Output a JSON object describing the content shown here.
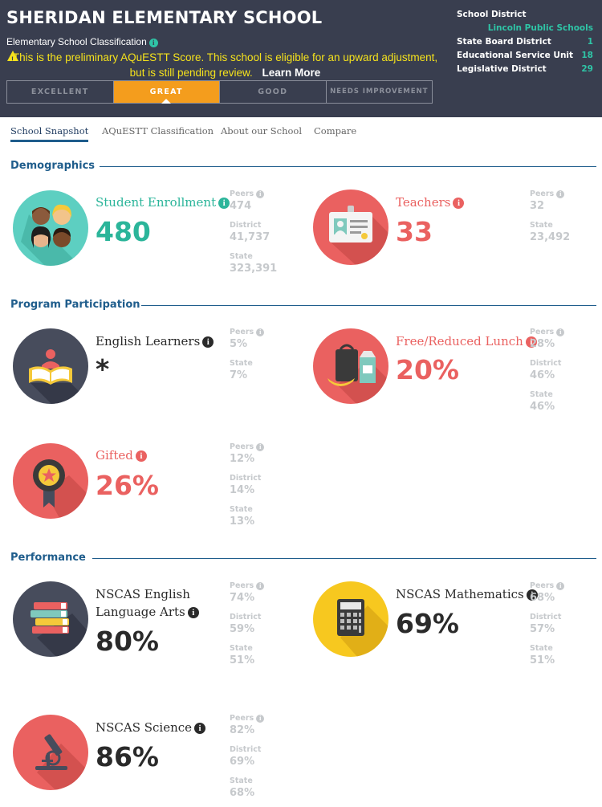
{
  "header": {
    "school_name": "SHERIDAN ELEMENTARY SCHOOL",
    "classification_label": "Elementary School Classification",
    "warning_text": "This is the preliminary AQuESTT Score. This school is eligible for an upward adjustment, but is still pending review.",
    "learn_more": "Learn More",
    "tiers": [
      "EXCELLENT",
      "GREAT",
      "GOOD",
      "NEEDS IMPROVEMENT"
    ],
    "active_tier": "GREAT",
    "district_panel": {
      "school_district_label": "School District",
      "school_district_value": "Lincoln Public Schools",
      "state_board_label": "State Board District",
      "state_board_value": "1",
      "esu_label": "Educational Service Unit",
      "esu_value": "18",
      "legislative_label": "Legislative District",
      "legislative_value": "29"
    }
  },
  "tabs": [
    "School Snapshot",
    "AQuESTT Classification",
    "About our School",
    "Compare"
  ],
  "active_tab": "School Snapshot",
  "sections": {
    "demographics": "Demographics",
    "program": "Program Participation",
    "performance": "Performance"
  },
  "compare_labels": {
    "peers": "Peers",
    "district": "District",
    "state": "State"
  },
  "stats": {
    "enrollment": {
      "label": "Student Enrollment",
      "value": "480",
      "peers": "474",
      "district": "41,737",
      "state": "323,391"
    },
    "teachers": {
      "label": "Teachers",
      "value": "33",
      "peers": "32",
      "state": "23,492"
    },
    "ell": {
      "label": "English Learners",
      "value": "*",
      "peers": "5%",
      "state": "7%"
    },
    "frl": {
      "label": "Free/Reduced Lunch",
      "value": "20%",
      "peers": "28%",
      "district": "46%",
      "state": "46%"
    },
    "gifted": {
      "label": "Gifted",
      "value": "26%",
      "peers": "12%",
      "district": "14%",
      "state": "13%"
    },
    "ela": {
      "label": "NSCAS English Language Arts",
      "value": "80%",
      "peers": "74%",
      "district": "59%",
      "state": "51%"
    },
    "math": {
      "label": "NSCAS Mathematics",
      "value": "69%",
      "peers": "68%",
      "district": "57%",
      "state": "51%"
    },
    "science": {
      "label": "NSCAS Science",
      "value": "86%",
      "peers": "82%",
      "district": "69%",
      "state": "68%"
    }
  },
  "colors": {
    "header_bg": "#393e4f",
    "accent_teal": "#2bb59a",
    "accent_red": "#ea6160",
    "tier_active": "#f49d1d",
    "warning_yellow": "#f5e21c",
    "section_blue": "#1f5d8c",
    "muted_gray": "#c6c9cc"
  },
  "icons": {
    "enrollment": "students-faces-icon",
    "teachers": "id-badge-icon",
    "ell": "reading-book-icon",
    "frl": "lunch-tray-icon",
    "gifted": "award-ribbon-icon",
    "ela": "books-stack-icon",
    "math": "calculator-icon",
    "science": "microscope-icon"
  }
}
